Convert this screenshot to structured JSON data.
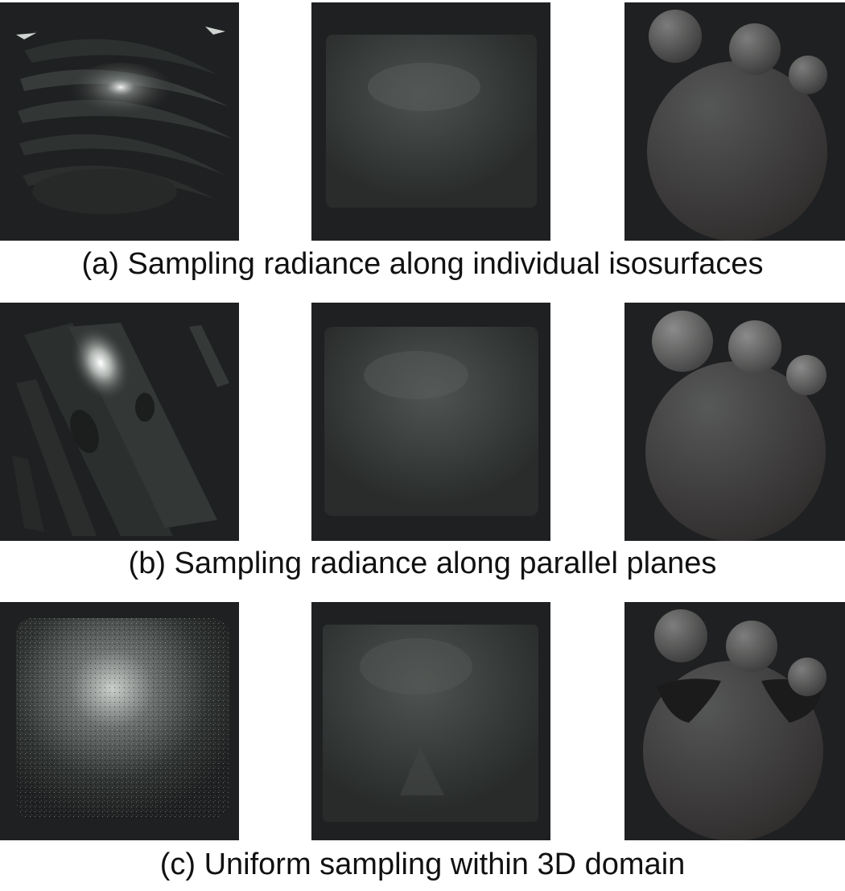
{
  "figure": {
    "rows": [
      {
        "caption": "(a) Sampling radiance along individual isosurfaces"
      },
      {
        "caption": "(b) Sampling radiance along parallel planes"
      },
      {
        "caption": "(c) Uniform sampling within 3D domain"
      }
    ],
    "colors": {
      "panel_background": "#1f2021",
      "sphere_gray": "#6e6e6e"
    }
  }
}
